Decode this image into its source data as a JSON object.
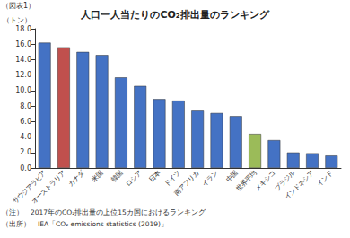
{
  "chart_data": {
    "type": "bar",
    "title": "人口一人当たりのCO₂排出量のランキング",
    "y_label": "（トン）",
    "annotations": [
      "（図表1）",
      "（注）　2017年のCO₂排出量の上位15カ国におけるランキング",
      "（出所）　IEA「CO₂ emissions statistics (2019)」"
    ],
    "categories": [
      "サウジアラビア",
      "オーストラリア",
      "カナダ",
      "米国",
      "韓国",
      "ロシア",
      "日本",
      "ドイツ",
      "南アフリカ",
      "イラン",
      "中国",
      "世界平均",
      "メキシコ",
      "ブラジル",
      "インドネシア",
      "インド"
    ],
    "values": [
      16.2,
      15.6,
      15.0,
      14.6,
      11.7,
      10.6,
      8.9,
      8.7,
      7.4,
      7.1,
      6.7,
      4.4,
      3.6,
      2.0,
      1.9,
      1.6
    ],
    "colors": [
      "#4472c4",
      "#c0504d",
      "#4472c4",
      "#4472c4",
      "#4472c4",
      "#4472c4",
      "#4472c4",
      "#4472c4",
      "#4472c4",
      "#4472c4",
      "#4472c4",
      "#9bbb59",
      "#4472c4",
      "#4472c4",
      "#4472c4",
      "#4472c4"
    ],
    "ylim": [
      0,
      18
    ],
    "yticks": [
      {
        "value": 0,
        "label": "0.0"
      },
      {
        "value": 2,
        "label": "2.0"
      },
      {
        "value": 4,
        "label": "4.0"
      },
      {
        "value": 6,
        "label": "6.0"
      },
      {
        "value": 8,
        "label": "8.0"
      },
      {
        "value": 10,
        "label": "10.0"
      },
      {
        "value": 12,
        "label": "12.0"
      },
      {
        "value": 14,
        "label": "14.0"
      },
      {
        "value": 16,
        "label": "16.0"
      },
      {
        "value": 18,
        "label": "18.0"
      }
    ],
    "grid": false
  }
}
